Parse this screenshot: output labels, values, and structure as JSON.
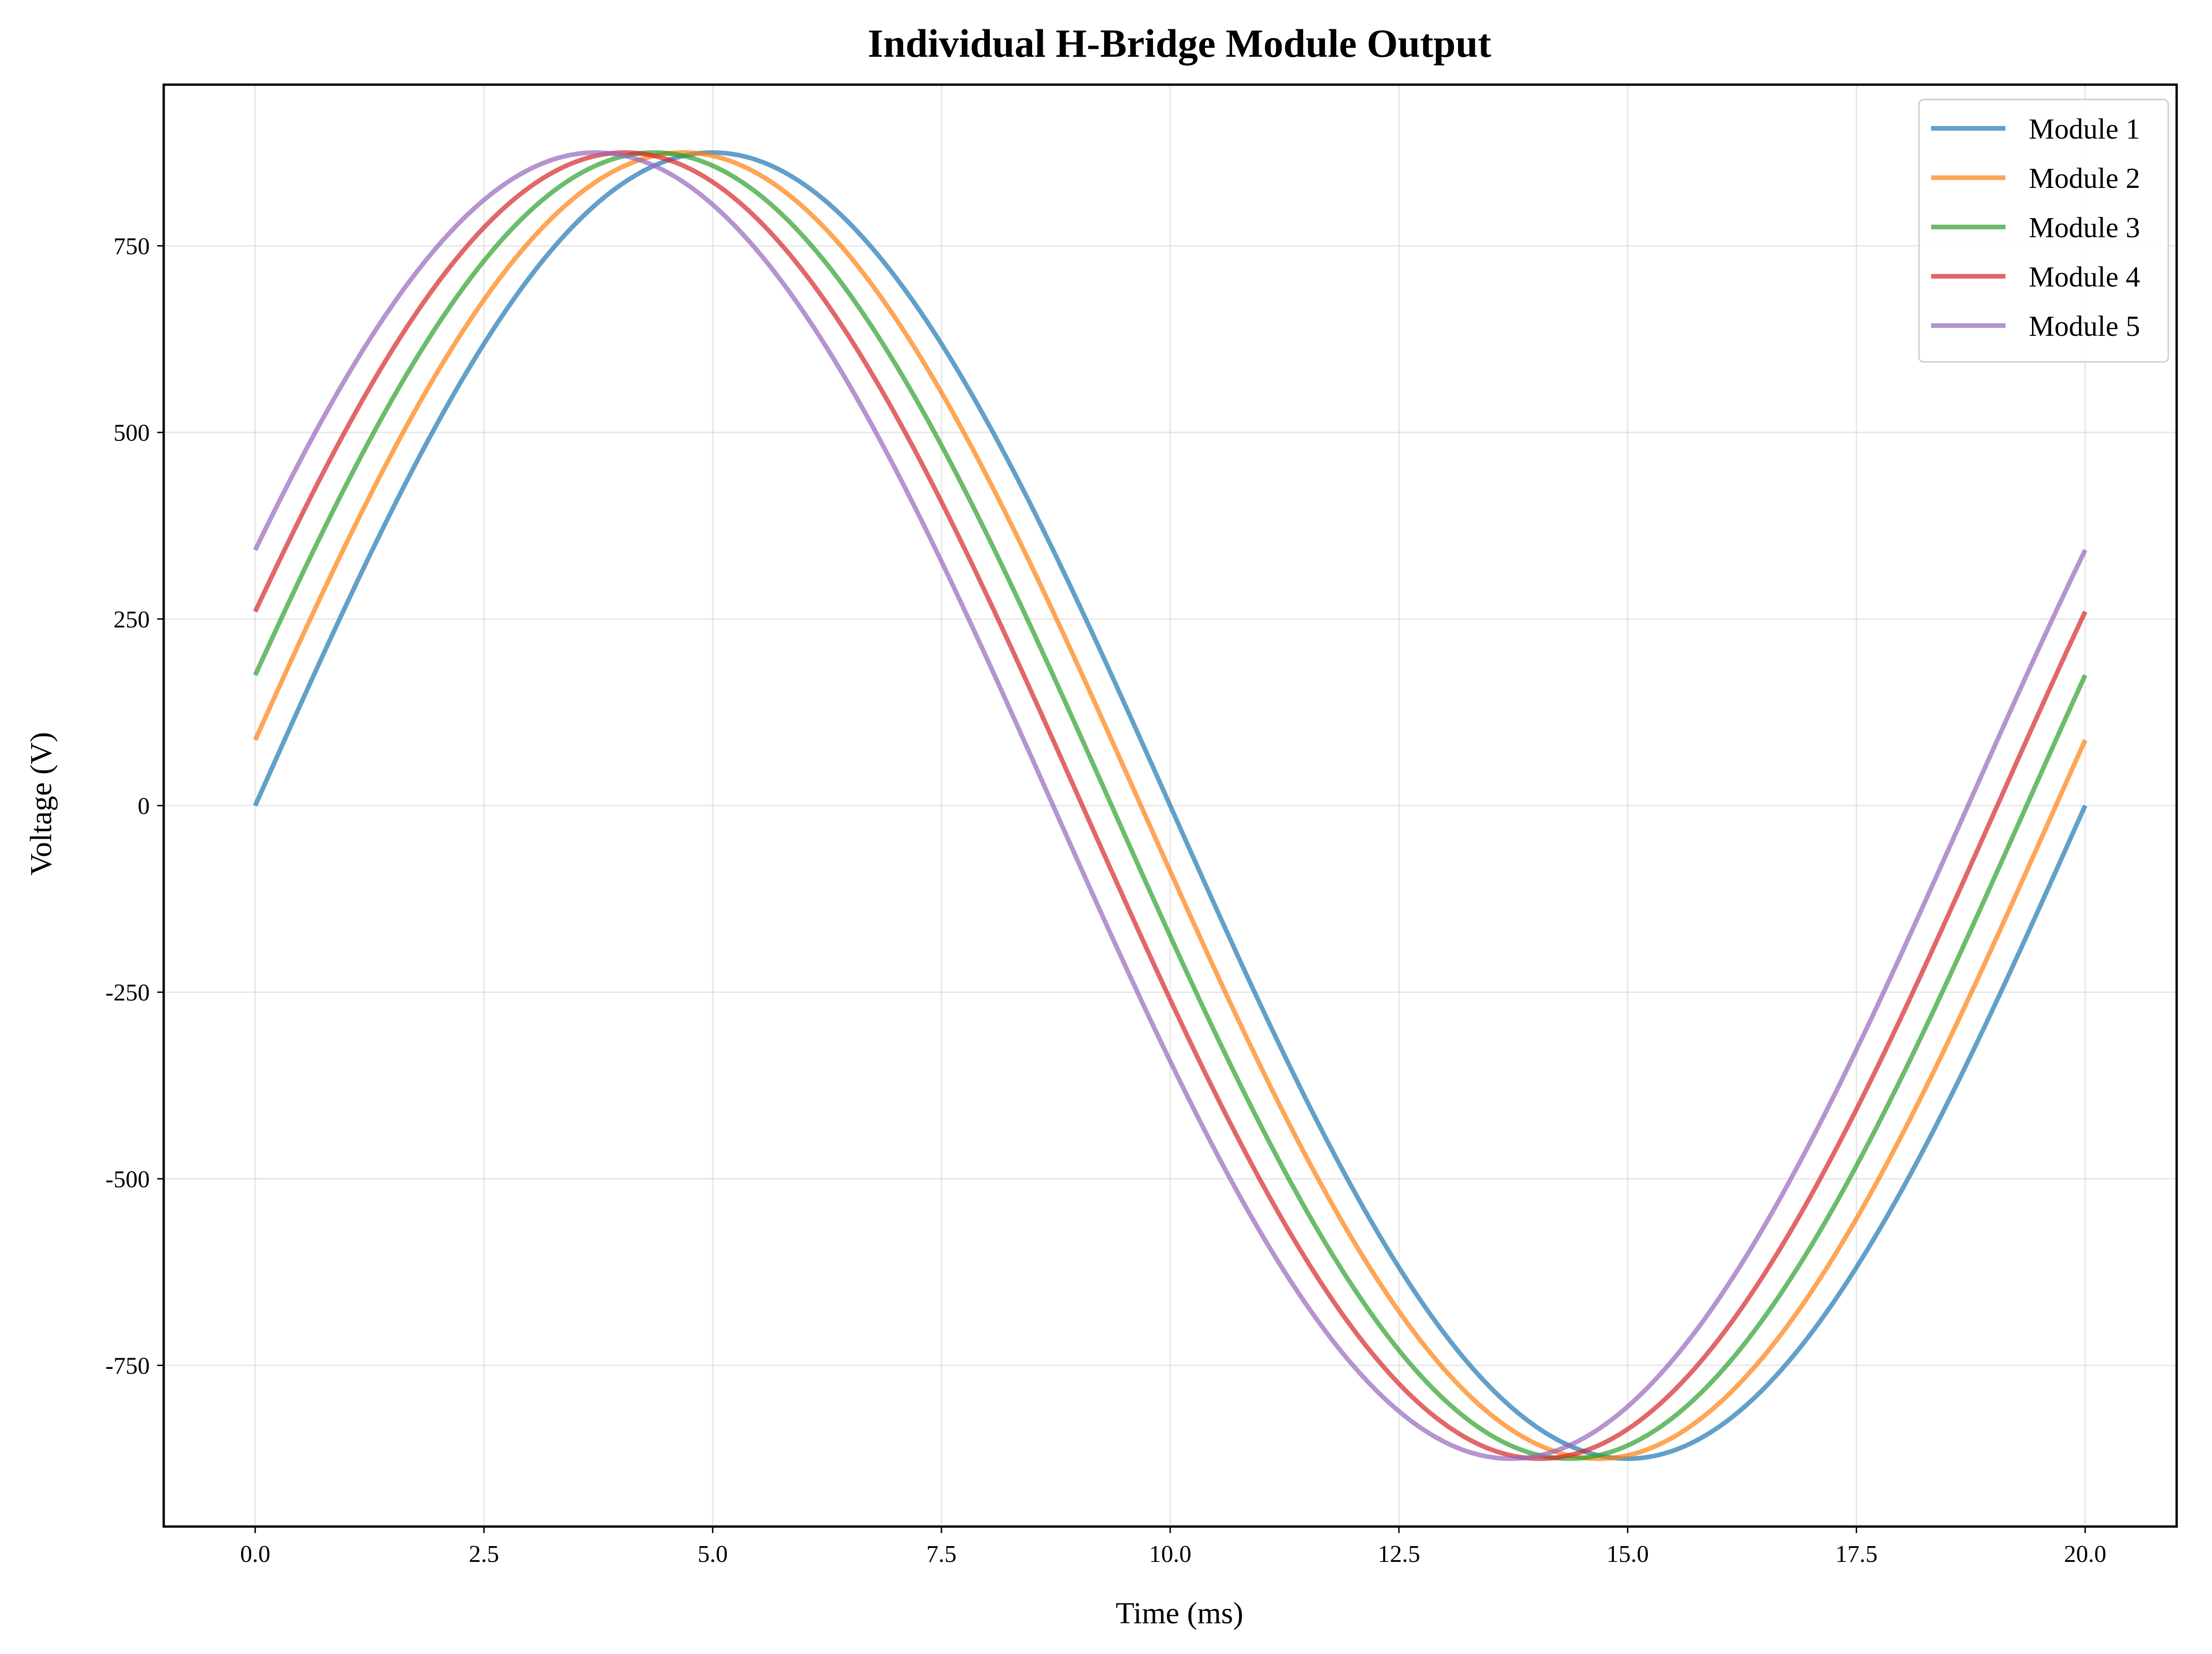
{
  "chart_data": {
    "type": "line",
    "title": "Individual H-Bridge Module Output",
    "xlabel": "Time (ms)",
    "ylabel": "Voltage (V)",
    "xlim": [
      -1.0,
      21.0
    ],
    "ylim": [
      -966,
      966
    ],
    "xticks": [
      0.0,
      2.5,
      5.0,
      7.5,
      10.0,
      12.5,
      15.0,
      17.5,
      20.0
    ],
    "xtick_labels": [
      "0.0",
      "2.5",
      "5.0",
      "7.5",
      "10.0",
      "12.5",
      "15.0",
      "17.5",
      "20.0"
    ],
    "yticks": [
      -750,
      -500,
      -250,
      0,
      250,
      500,
      750
    ],
    "ytick_labels": [
      "-750",
      "-500",
      "-250",
      "0",
      "250",
      "500",
      "750"
    ],
    "grid": true,
    "legend_position": "top-right",
    "frequency_hz": 50,
    "x_range": [
      0,
      20
    ],
    "series": [
      {
        "name": "Module 1",
        "color": "#1f77b4",
        "amplitude": 875,
        "phase_deg": 0
      },
      {
        "name": "Module 2",
        "color": "#ff7f0e",
        "amplitude": 875,
        "phase_deg": 5.76
      },
      {
        "name": "Module 3",
        "color": "#2ca02c",
        "amplitude": 875,
        "phase_deg": 11.52
      },
      {
        "name": "Module 4",
        "color": "#d62728",
        "amplitude": 875,
        "phase_deg": 17.28
      },
      {
        "name": "Module 5",
        "color": "#9467bd",
        "amplitude": 875,
        "phase_deg": 23.04
      }
    ]
  }
}
